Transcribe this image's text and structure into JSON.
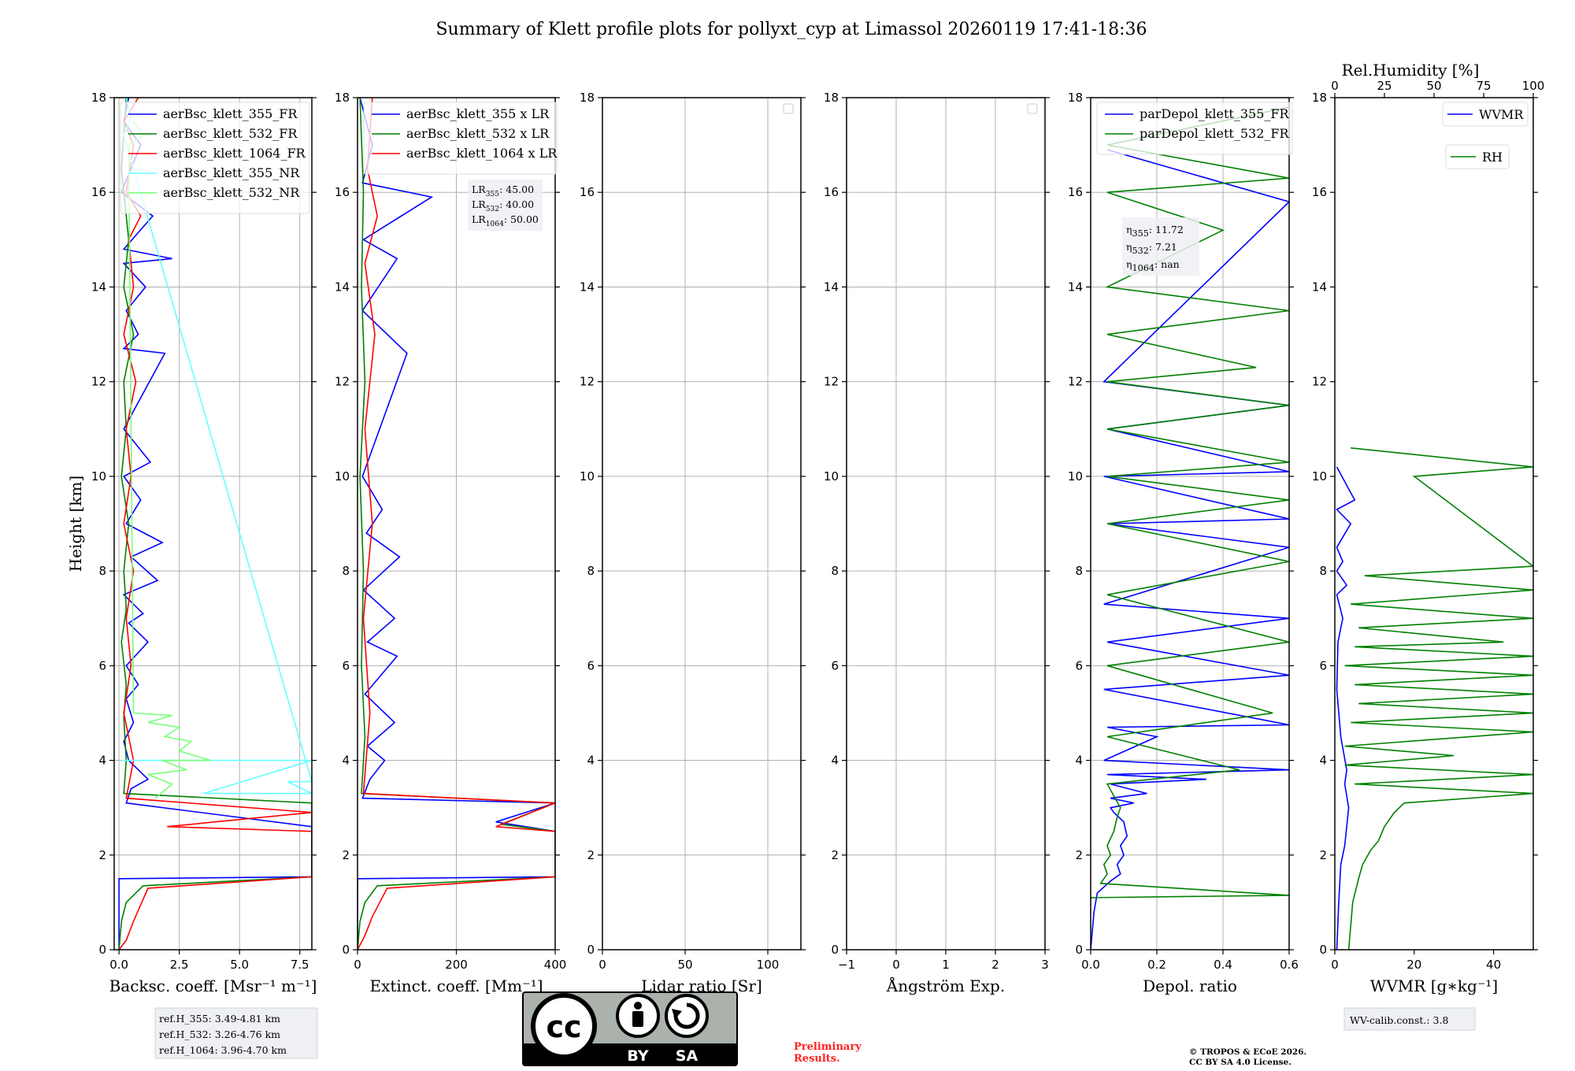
{
  "title": "Summary of Klett profile plots for pollyxt_cyp at Limassol 20260119 17:41-18:36",
  "colors": {
    "c355": "#0000ff",
    "c532": "#008000",
    "c1064": "#ff0000",
    "c355nr": "#66ffff",
    "c532nr": "#77ff77"
  },
  "footer": {
    "ref_heights": [
      "ref.H_355: 3.49-4.81 km",
      "ref.H_532: 3.26-4.76 km",
      "ref.H_1064: 3.96-4.70 km"
    ],
    "preliminary": [
      "Preliminary",
      "Results."
    ],
    "copyright": [
      "© TROPOS & ECoE 2026.",
      "CC BY SA 4.0 License."
    ],
    "license_icon": "cc-by-sa-badge",
    "license_labels": [
      "BY",
      "SA"
    ],
    "wv_calib": "WV-calib.const.: 3.8"
  },
  "chart_data": [
    {
      "type": "line",
      "id": "backscatter",
      "title": "",
      "xlabel": "Backsc. coeff. [Msr⁻¹ m⁻¹]",
      "ylabel": "Height [km]",
      "xlim": [
        -0.2,
        8.0
      ],
      "ylim": [
        0,
        18
      ],
      "xticks": [
        0,
        2.5,
        5.0,
        7.5
      ],
      "xtick_labels": [
        "0.0",
        "2.5",
        "5.0",
        "7.5"
      ],
      "yticks": [
        0,
        2,
        4,
        6,
        8,
        10,
        12,
        14,
        16,
        18
      ],
      "ytick_labels": [
        "0",
        "2",
        "4",
        "6",
        "8",
        "10",
        "12",
        "14",
        "16",
        "18"
      ],
      "grid": true,
      "legend_position": "top-right",
      "series": [
        {
          "name": "aerBsc_klett_355_FR",
          "color": "#0000ff",
          "x": [
            0.0,
            0.0,
            8.0,
            8.0,
            0.3,
            0.5,
            1.2,
            0.4,
            0.2,
            0.6,
            0.3,
            0.8,
            0.3,
            1.2,
            0.4,
            1.0,
            0.2,
            1.6,
            0.5,
            1.8,
            0.3,
            0.9,
            0.2,
            1.3,
            0.2,
            1.9,
            0.2,
            0.8,
            0.3,
            1.1,
            0.2,
            2.2,
            0.2,
            1.4,
            0.1,
            0.9,
            0.2,
            0.4
          ],
          "y": [
            0.0,
            1.5,
            1.54,
            2.6,
            3.1,
            3.4,
            3.6,
            4.0,
            4.4,
            4.8,
            5.3,
            5.6,
            6.0,
            6.5,
            6.9,
            7.1,
            7.5,
            7.8,
            8.3,
            8.6,
            9.0,
            9.5,
            10.0,
            10.3,
            11.0,
            12.6,
            12.7,
            13.0,
            13.5,
            14.0,
            14.5,
            14.6,
            14.8,
            15.5,
            16.0,
            17.0,
            17.5,
            18.0
          ]
        },
        {
          "name": "aerBsc_klett_532_FR",
          "color": "#008000",
          "x": [
            0.0,
            0.1,
            0.3,
            1.0,
            8.0,
            8.0,
            0.2,
            0.3,
            0.2,
            0.3,
            0.1,
            0.3,
            0.2,
            0.4,
            0.1,
            0.3,
            0.2,
            0.6,
            0.2,
            0.4,
            0.1,
            0.3
          ],
          "y": [
            0.0,
            0.6,
            1.0,
            1.35,
            1.54,
            3.1,
            3.3,
            4.0,
            4.9,
            5.6,
            6.5,
            7.2,
            8.0,
            9.0,
            10.0,
            11.0,
            12.0,
            13.0,
            14.0,
            15.0,
            16.5,
            18.0
          ]
        },
        {
          "name": "aerBsc_klett_1064_FR",
          "color": "#ff0000",
          "x": [
            0.0,
            0.3,
            0.6,
            1.2,
            8.0,
            8.0,
            2.0,
            8.0,
            0.3,
            0.6,
            0.2,
            0.5,
            0.3,
            0.6,
            0.2,
            0.5,
            0.3,
            0.7,
            0.2,
            0.6,
            0.4,
            0.9,
            0.3,
            0.6,
            0.2,
            0.8
          ],
          "y": [
            0.0,
            0.2,
            0.6,
            1.3,
            1.54,
            2.5,
            2.6,
            2.9,
            3.2,
            4.0,
            5.0,
            6.0,
            7.0,
            8.0,
            9.0,
            10.0,
            11.0,
            12.0,
            13.0,
            14.0,
            15.0,
            15.5,
            16.0,
            17.0,
            17.5,
            18.0
          ]
        },
        {
          "name": "aerBsc_klett_355_NR",
          "color": "#66ffff",
          "x": [
            0.1,
            8.0,
            3.5,
            8.0,
            7.0,
            8.0,
            0.2,
            0.5,
            0.3
          ],
          "y": [
            4.0,
            4.0,
            3.3,
            3.3,
            3.55,
            3.55,
            17.2,
            17.6,
            18.0
          ]
        },
        {
          "name": "aerBsc_klett_532_NR",
          "color": "#77ff77",
          "x": [
            1.5,
            2.2,
            1.2,
            2.8,
            1.8,
            3.8,
            2.5,
            3.0,
            1.9,
            2.5,
            1.2,
            2.2,
            0.6,
            0.4,
            1.0,
            0.6
          ],
          "y": [
            3.2,
            3.5,
            3.7,
            3.8,
            4.0,
            4.0,
            4.2,
            4.4,
            4.5,
            4.7,
            4.8,
            4.95,
            5.0,
            17.0,
            17.2,
            17.5
          ]
        }
      ],
      "annotations": []
    },
    {
      "type": "line",
      "id": "extinction",
      "title": "",
      "xlabel": "Extinct. coeff. [Mm⁻¹]",
      "ylabel": "",
      "xlim": [
        0,
        400
      ],
      "ylim": [
        0,
        18
      ],
      "xticks": [
        0,
        200,
        400
      ],
      "xtick_labels": [
        "0",
        "200",
        "400"
      ],
      "yticks": [
        0,
        2,
        4,
        6,
        8,
        10,
        12,
        14,
        16,
        18
      ],
      "ytick_labels": [
        "0",
        "2",
        "4",
        "6",
        "8",
        "10",
        "12",
        "14",
        "16",
        "18"
      ],
      "grid": true,
      "legend_position": "top-right",
      "series": [
        {
          "name": "aerBsc_klett_355 x LR",
          "color": "#0000ff",
          "x": [
            0,
            0,
            400,
            400,
            280,
            400,
            10,
            25,
            55,
            20,
            75,
            15,
            80,
            20,
            75,
            12,
            85,
            18,
            50,
            10,
            100,
            10,
            80,
            12,
            150,
            10,
            30,
            5
          ],
          "y": [
            0.0,
            1.5,
            1.54,
            2.5,
            2.7,
            3.1,
            3.2,
            3.6,
            4.0,
            4.3,
            4.8,
            5.4,
            6.2,
            6.5,
            7.0,
            7.6,
            8.3,
            8.8,
            9.3,
            10.0,
            12.6,
            13.5,
            14.6,
            15.0,
            15.9,
            16.2,
            17.0,
            18.0
          ]
        },
        {
          "name": "aerBsc_klett_532 x LR",
          "color": "#008000",
          "x": [
            0,
            5,
            15,
            40,
            400,
            400,
            290,
            400,
            8,
            15,
            8,
            12,
            5,
            15,
            8,
            12,
            5
          ],
          "y": [
            0.0,
            0.6,
            1.0,
            1.35,
            1.54,
            2.5,
            2.65,
            3.1,
            3.3,
            4.5,
            6.0,
            8.0,
            10.0,
            12.0,
            14.0,
            16.0,
            18.0
          ]
        },
        {
          "name": "aerBsc_klett_1064 x LR",
          "color": "#ff0000",
          "x": [
            0,
            15,
            30,
            60,
            400,
            400,
            280,
            400,
            12,
            25,
            12,
            30,
            15,
            35,
            15,
            40,
            20,
            30
          ],
          "y": [
            0.0,
            0.3,
            0.7,
            1.3,
            1.54,
            2.5,
            2.6,
            3.1,
            3.3,
            5.0,
            7.0,
            9.0,
            11.0,
            13.0,
            14.5,
            15.5,
            16.5,
            18.0
          ]
        }
      ],
      "annotations": [
        "LR355: 45.00",
        "LR532: 40.00",
        "LR1064: 50.00"
      ],
      "annotation_parts": [
        [
          "LR",
          "355",
          ": 45.00"
        ],
        [
          "LR",
          "532",
          ": 40.00"
        ],
        [
          "LR",
          "1064",
          ": 50.00"
        ]
      ]
    },
    {
      "type": "line",
      "id": "lidar_ratio",
      "title": "",
      "xlabel": "Lidar ratio [Sr]",
      "ylabel": "",
      "xlim": [
        0,
        120
      ],
      "ylim": [
        0,
        18
      ],
      "xticks": [
        0,
        50,
        100
      ],
      "xtick_labels": [
        "0",
        "50",
        "100"
      ],
      "yticks": [
        0,
        2,
        4,
        6,
        8,
        10,
        12,
        14,
        16,
        18
      ],
      "ytick_labels": [
        "0",
        "2",
        "4",
        "6",
        "8",
        "10",
        "12",
        "14",
        "16",
        "18"
      ],
      "grid": true,
      "legend_position": "top-right",
      "series": []
    },
    {
      "type": "line",
      "id": "angstrom",
      "title": "",
      "xlabel": "Ångström Exp.",
      "ylabel": "",
      "xlim": [
        -1,
        3
      ],
      "ylim": [
        0,
        18
      ],
      "xticks": [
        -1,
        0,
        1,
        2,
        3
      ],
      "xtick_labels": [
        "−1",
        "0",
        "1",
        "2",
        "3"
      ],
      "yticks": [
        0,
        2,
        4,
        6,
        8,
        10,
        12,
        14,
        16,
        18
      ],
      "ytick_labels": [
        "0",
        "2",
        "4",
        "6",
        "8",
        "10",
        "12",
        "14",
        "16",
        "18"
      ],
      "grid": true,
      "legend_position": "top-right",
      "series": []
    },
    {
      "type": "line",
      "id": "depol",
      "title": "",
      "xlabel": "Depol. ratio",
      "ylabel": "",
      "xlim": [
        0,
        0.6
      ],
      "ylim": [
        0,
        18
      ],
      "xticks": [
        0,
        0.2,
        0.4,
        0.6
      ],
      "xtick_labels": [
        "0.0",
        "0.2",
        "0.4",
        "0.6"
      ],
      "yticks": [
        0,
        2,
        4,
        6,
        8,
        10,
        12,
        14,
        16,
        18
      ],
      "ytick_labels": [
        "0",
        "2",
        "4",
        "6",
        "8",
        "10",
        "12",
        "14",
        "16",
        "18"
      ],
      "grid": true,
      "legend_position": "top-right",
      "series": [
        {
          "name": "parDepol_klett_355_FR",
          "color": "#0000ff",
          "x": [
            0.0,
            0.01,
            0.02,
            0.06,
            0.09,
            0.08,
            0.1,
            0.09,
            0.11,
            0.1,
            0.07,
            0.06,
            0.13,
            0.06,
            0.17,
            0.06,
            0.35,
            0.05,
            0.6,
            0.04,
            0.2,
            0.05,
            0.6,
            0.04,
            0.6,
            0.05,
            0.6,
            0.04,
            0.6,
            0.05,
            0.6,
            0.04,
            0.6,
            0.05,
            0.6,
            0.04,
            0.6,
            0.05
          ],
          "y": [
            0.0,
            0.8,
            1.2,
            1.45,
            1.6,
            1.8,
            2.0,
            2.2,
            2.4,
            2.7,
            2.9,
            3.0,
            3.1,
            3.2,
            3.3,
            3.5,
            3.6,
            3.7,
            3.8,
            4.0,
            4.5,
            4.7,
            4.75,
            5.5,
            5.8,
            6.5,
            7.0,
            7.3,
            8.5,
            9.0,
            9.1,
            10.0,
            10.1,
            11.0,
            11.5,
            12.0,
            15.8,
            16.9
          ]
        },
        {
          "name": "parDepol_klett_532_FR",
          "color": "#008000",
          "x": [
            0.0,
            0.6,
            0.03,
            0.05,
            0.04,
            0.06,
            0.05,
            0.07,
            0.08,
            0.09,
            0.05,
            0.45,
            0.05,
            0.55,
            0.05,
            0.6,
            0.05,
            0.6,
            0.05,
            0.6,
            0.05,
            0.6,
            0.05,
            0.6,
            0.05,
            0.5,
            0.05,
            0.6,
            0.05,
            0.4,
            0.05,
            0.6,
            0.05,
            0.6
          ],
          "y": [
            1.1,
            1.15,
            1.4,
            1.6,
            1.8,
            2.0,
            2.2,
            2.5,
            2.8,
            3.0,
            3.5,
            3.8,
            4.5,
            5.0,
            6.0,
            6.5,
            7.5,
            8.2,
            9.0,
            9.5,
            10.0,
            10.3,
            11.0,
            11.5,
            12.0,
            12.3,
            13.0,
            13.5,
            14.0,
            15.2,
            16.0,
            16.3,
            17.0,
            17.8
          ]
        }
      ],
      "annotations": [
        "η355: 11.72",
        "η532: 7.21",
        "η1064: nan"
      ],
      "annotation_parts": [
        [
          "η",
          "355",
          ": 11.72"
        ],
        [
          "η",
          "532",
          ": 7.21"
        ],
        [
          "η",
          "1064",
          ": nan"
        ]
      ]
    },
    {
      "type": "line",
      "id": "wvmr_rh",
      "title": "",
      "xlabel": "WVMR [g∗kg⁻¹]",
      "ylabel": "",
      "xlim": [
        0,
        50
      ],
      "ylim": [
        0,
        18
      ],
      "xticks": [
        0,
        20,
        40
      ],
      "xtick_labels": [
        "0",
        "20",
        "40"
      ],
      "top_xlabel": "Rel.Humidity [%]",
      "top_xlim": [
        0,
        100
      ],
      "top_xticks": [
        0,
        25,
        50,
        75,
        100
      ],
      "top_xtick_labels": [
        "0",
        "25",
        "50",
        "75",
        "100"
      ],
      "yticks": [
        0,
        2,
        4,
        6,
        8,
        10,
        12,
        14,
        16,
        18
      ],
      "ytick_labels": [
        "0",
        "2",
        "4",
        "6",
        "8",
        "10",
        "12",
        "14",
        "16",
        "18"
      ],
      "grid": false,
      "series": [
        {
          "name": "WVMR",
          "color": "#0000ff",
          "axis": "bottom",
          "x": [
            0.5,
            1.0,
            1.5,
            2.5,
            3.0,
            3.5,
            2.5,
            3.0,
            1.5,
            0.5,
            0.8,
            2.0,
            0.5,
            3.0,
            0.5,
            2.0,
            0.5,
            4.0,
            0.5,
            5.0,
            0.5
          ],
          "y": [
            0.0,
            1.0,
            1.8,
            2.2,
            2.6,
            3.0,
            3.5,
            3.8,
            4.5,
            5.5,
            6.5,
            7.0,
            7.5,
            7.7,
            8.0,
            8.2,
            8.5,
            9.0,
            9.3,
            9.5,
            10.2
          ]
        },
        {
          "name": "RH",
          "color": "#008000",
          "axis": "top",
          "x": [
            7.0,
            8.0,
            9.0,
            12.0,
            14.0,
            18.0,
            22.0,
            25.0,
            30.0,
            35.0,
            100,
            10,
            100,
            5,
            60,
            5,
            100,
            8,
            100,
            12,
            100,
            10,
            100,
            5,
            100,
            10,
            85,
            12,
            100,
            8,
            100,
            15,
            100,
            40,
            100,
            8
          ],
          "y": [
            0.0,
            0.5,
            1.0,
            1.5,
            1.8,
            2.1,
            2.3,
            2.6,
            2.9,
            3.1,
            3.3,
            3.5,
            3.7,
            3.9,
            4.1,
            4.3,
            4.6,
            4.8,
            5.0,
            5.2,
            5.4,
            5.6,
            5.8,
            6.0,
            6.2,
            6.4,
            6.5,
            6.8,
            7.0,
            7.3,
            7.6,
            7.9,
            8.1,
            10.0,
            10.2,
            10.6
          ]
        }
      ],
      "legend_entries": [
        "WVMR",
        "RH"
      ],
      "annotations": []
    }
  ]
}
